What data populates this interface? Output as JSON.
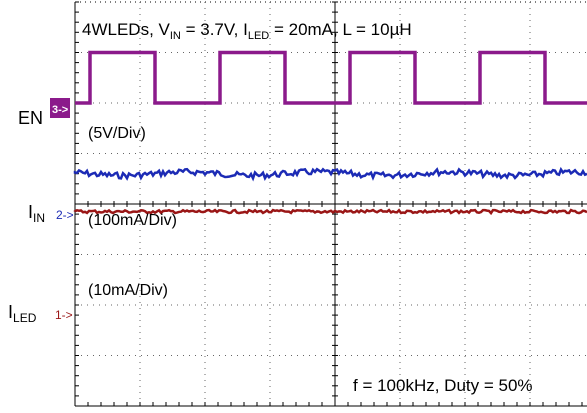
{
  "chart_data": {
    "type": "line",
    "title": "4WLEDs, V_IN = 3.7V, I_LED = 20mA, L = 10µH",
    "title_parts": {
      "a": "4WLEDs, V",
      "a_sub": "IN",
      "b": " = 3.7V, I",
      "b_sub": "LED",
      "c": " = 20mA, L = 10µH"
    },
    "footer": "f = 100kHz, Duty = 50%",
    "grid": true,
    "grid_divisions": {
      "x": 10,
      "y": 8
    },
    "series": [
      {
        "name": "EN",
        "channel": "3->",
        "scale": "(5V/Div)",
        "color": "#8b1a8b",
        "waveform": "square",
        "high_level_div": 7.0,
        "low_level_div": 6.0,
        "period_div": 1.0,
        "duty": 0.5,
        "first_rising_edge_div": 0.0
      },
      {
        "name": "I_IN",
        "label_main": "I",
        "label_sub": "IN",
        "channel": "2->",
        "scale": "(100mA/Div)",
        "color": "#1c2bb5",
        "waveform": "dc_ripple",
        "level_div": 4.6,
        "ripple_div": 0.06
      },
      {
        "name": "I_LED",
        "label_main": "I",
        "label_sub": "LED",
        "channel": "1->",
        "scale": "(10mA/Div)",
        "color": "#9a1616",
        "waveform": "dc",
        "level_div": 3.85,
        "ripple_div": 0.03
      }
    ]
  }
}
